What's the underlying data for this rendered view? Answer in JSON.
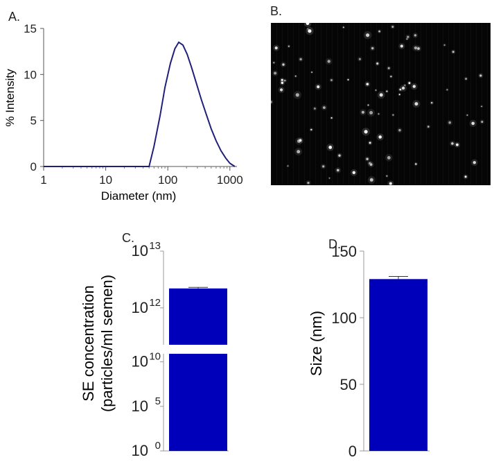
{
  "panels": {
    "a": "A.",
    "b": "B.",
    "c": "C.",
    "d": "D."
  },
  "chart_data": [
    {
      "panel": "A.",
      "type": "line",
      "xlabel": "Diameter (nm)",
      "ylabel": "% Intensity",
      "xscale": "log",
      "xlim": [
        1,
        1300
      ],
      "ylim": [
        0,
        15
      ],
      "xticks": [
        1,
        10,
        100,
        1000
      ],
      "xtick_labels": [
        "1",
        "10",
        "100",
        "1000"
      ],
      "yticks": [
        0,
        5,
        10,
        15
      ],
      "ytick_labels": [
        "0",
        "5",
        "10",
        "15"
      ],
      "line_color": "#1f1f7a",
      "x": [
        1,
        10,
        50,
        60,
        75,
        90,
        110,
        130,
        150,
        175,
        205,
        240,
        290,
        350,
        420,
        500,
        600,
        720,
        860,
        1000,
        1200
      ],
      "y": [
        0,
        0,
        0,
        2.2,
        5.5,
        8.6,
        11.2,
        12.8,
        13.5,
        13.2,
        12.2,
        10.8,
        9.0,
        7.2,
        5.6,
        4.1,
        2.8,
        1.7,
        0.9,
        0.35,
        0
      ]
    },
    {
      "panel": "C.",
      "type": "bar",
      "ylabel": "SE concentration (particles/ml semen)",
      "ylabel_lines": [
        "SE concentration",
        "(particles/ml semen)"
      ],
      "yscale": "log",
      "axis_break": true,
      "lower_ticks": [
        {
          "base": "10",
          "exp": "0"
        },
        {
          "base": "10",
          "exp": "5"
        },
        {
          "base": "10",
          "exp": "10"
        }
      ],
      "upper_ticks": [
        {
          "base": "10",
          "exp": "12"
        },
        {
          "base": "10",
          "exp": "13"
        }
      ],
      "categories": [
        ""
      ],
      "values": [
        2200000000000
      ],
      "error": [
        100000000000
      ],
      "bar_color": "#0000bb"
    },
    {
      "panel": "D.",
      "type": "bar",
      "ylabel": "Size (nm)",
      "ylim": [
        0,
        150
      ],
      "yticks": [
        0,
        50,
        100,
        150
      ],
      "ytick_labels": [
        "0",
        "50",
        "100",
        "150"
      ],
      "categories": [
        ""
      ],
      "values": [
        129
      ],
      "error": [
        2
      ],
      "bar_color": "#0000bb"
    }
  ]
}
